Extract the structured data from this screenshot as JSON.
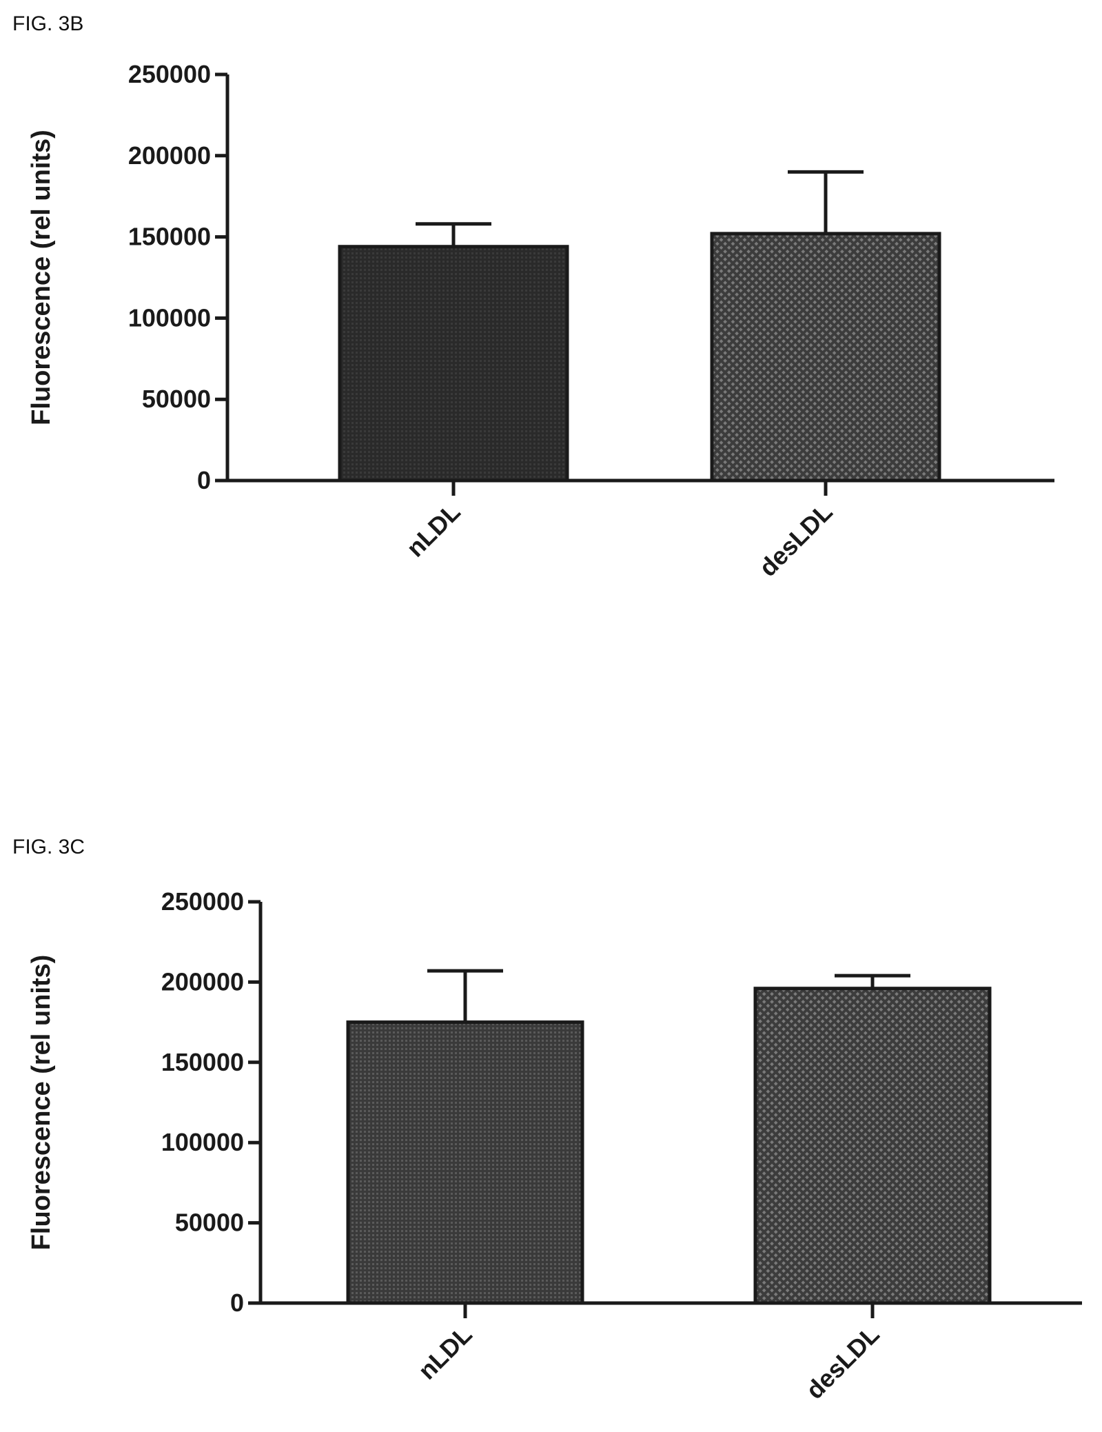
{
  "figures": [
    {
      "label": "FIG. 3B"
    },
    {
      "label": "FIG. 3C"
    }
  ],
  "chart_data": [
    {
      "type": "bar",
      "title": "",
      "xlabel": "",
      "ylabel": "Fluorescence (rel units)",
      "ylim": [
        0,
        250000
      ],
      "yticks": [
        "0",
        "50000",
        "100000",
        "150000",
        "200000",
        "250000"
      ],
      "categories": [
        "nLDL",
        "desLDL"
      ],
      "values": [
        144000,
        152000
      ],
      "error_upper": [
        158000,
        190000
      ],
      "grid": false,
      "bar_colors": [
        "#2a2a2a",
        "#555555"
      ]
    },
    {
      "type": "bar",
      "title": "",
      "xlabel": "",
      "ylabel": "Fluorescence (rel units)",
      "ylim": [
        0,
        250000
      ],
      "yticks": [
        "0",
        "50000",
        "100000",
        "150000",
        "200000",
        "250000"
      ],
      "categories": [
        "nLDL",
        "desLDL"
      ],
      "values": [
        175000,
        196000
      ],
      "error_upper": [
        207000,
        204000
      ],
      "grid": false,
      "bar_colors": [
        "#4a4a4a",
        "#5a5a5a"
      ]
    }
  ]
}
